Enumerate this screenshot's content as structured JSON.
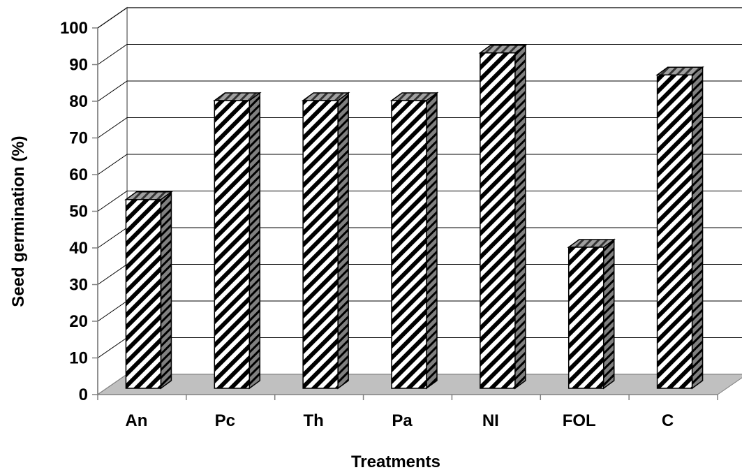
{
  "chart_data": {
    "type": "bar",
    "style": "3d-hatched",
    "categories": [
      "An",
      "Pc",
      "Th",
      "Pa",
      "NI",
      "FOL",
      "C"
    ],
    "values": [
      53,
      80,
      80,
      80,
      93,
      40,
      87
    ],
    "xlabel": "Treatments",
    "ylabel": "Seed germination (%)",
    "ylim": [
      0,
      100
    ],
    "yticks": [
      "0",
      "10",
      "20",
      "30",
      "40",
      "50",
      "60",
      "70",
      "80",
      "90",
      "100"
    ],
    "grid": true,
    "legend": "none",
    "colors": {
      "bar_front": "#ffffff",
      "hatch": "#000000",
      "bar_side": "#808080",
      "bar_top": "#999999",
      "floor": "#c0c0c0",
      "gridline": "#000000"
    }
  }
}
